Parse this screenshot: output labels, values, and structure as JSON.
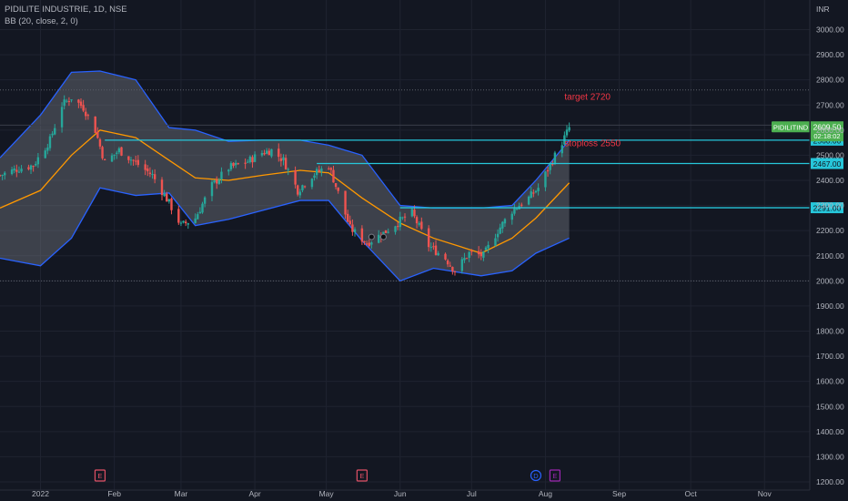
{
  "header": {
    "symbol_line": "PIDILITE INDUSTRIE, 1D, NSE",
    "indicator_line": "BB (20, close, 2, 0)"
  },
  "currency": "INR",
  "annotations": {
    "target": "target 2720",
    "stoploss": "stoploss 2550"
  },
  "badges": {
    "symbol": "PIDILITIND",
    "last_price": "2609.50",
    "countdown": "02:18:02",
    "level_2560": "2560.00",
    "level_2467": "2467.00",
    "level_2291": "2291.00"
  },
  "event_markers": [
    {
      "kind": "earnings",
      "glyph": "E",
      "date": "2022-01-26",
      "color": "#e05065"
    },
    {
      "kind": "earnings",
      "glyph": "E",
      "date": "2022-05-16",
      "color": "#e05065"
    },
    {
      "kind": "dividend",
      "glyph": "D",
      "date": "2022-07-28",
      "color": "#2962ff"
    },
    {
      "kind": "earnings",
      "glyph": "E",
      "date": "2022-08-05",
      "color": "#9c27b0"
    }
  ],
  "colors": {
    "background": "#131722",
    "up_candle": "#26a69a",
    "down_candle": "#ef5350",
    "band": "#2962ff",
    "basis": "#ff9800",
    "band_fill": "#787b86",
    "level_line": "#26c6da",
    "annotation_text": "#f23645",
    "last_price_badge": "#4caf50",
    "axis_text": "#b2b5be"
  },
  "chart_data": {
    "type": "candlestick",
    "title": "PIDILITE INDUSTRIE, 1D, NSE",
    "ylabel": "INR",
    "ylim": [
      1200,
      3100
    ],
    "x_range": [
      "2021-12-15",
      "2022-11-20"
    ],
    "y_ticks": [
      3000,
      2900,
      2800,
      2700,
      2600,
      2500,
      2400,
      2300,
      2200,
      2100,
      2000,
      1900,
      1800,
      1700,
      1600,
      1500,
      1400,
      1300,
      1200
    ],
    "x_ticks": [
      {
        "label": "2022",
        "date": "2022-01-01"
      },
      {
        "label": "Feb",
        "date": "2022-02-01"
      },
      {
        "label": "Mar",
        "date": "2022-03-01"
      },
      {
        "label": "Apr",
        "date": "2022-04-01"
      },
      {
        "label": "May",
        "date": "2022-05-01"
      },
      {
        "label": "Jun",
        "date": "2022-06-01"
      },
      {
        "label": "Jul",
        "date": "2022-07-01"
      },
      {
        "label": "Aug",
        "date": "2022-08-01"
      },
      {
        "label": "Sep",
        "date": "2022-09-01"
      },
      {
        "label": "Oct",
        "date": "2022-10-01"
      },
      {
        "label": "Nov",
        "date": "2022-11-01"
      }
    ],
    "close_path": [
      [
        "2021-12-15",
        2420
      ],
      [
        "2021-12-22",
        2445
      ],
      [
        "2021-12-29",
        2460
      ],
      [
        "2022-01-05",
        2560
      ],
      [
        "2022-01-10",
        2700
      ],
      [
        "2022-01-14",
        2730
      ],
      [
        "2022-01-19",
        2690
      ],
      [
        "2022-01-24",
        2600
      ],
      [
        "2022-01-28",
        2470
      ],
      [
        "2022-02-03",
        2520
      ],
      [
        "2022-02-10",
        2470
      ],
      [
        "2022-02-17",
        2420
      ],
      [
        "2022-02-24",
        2310
      ],
      [
        "2022-03-01",
        2220
      ],
      [
        "2022-03-07",
        2250
      ],
      [
        "2022-03-14",
        2380
      ],
      [
        "2022-03-21",
        2450
      ],
      [
        "2022-03-28",
        2470
      ],
      [
        "2022-04-04",
        2510
      ],
      [
        "2022-04-08",
        2520
      ],
      [
        "2022-04-13",
        2480
      ],
      [
        "2022-04-19",
        2360
      ],
      [
        "2022-04-25",
        2420
      ],
      [
        "2022-05-02",
        2460
      ],
      [
        "2022-05-06",
        2350
      ],
      [
        "2022-05-11",
        2210
      ],
      [
        "2022-05-18",
        2150
      ],
      [
        "2022-05-25",
        2190
      ],
      [
        "2022-06-01",
        2240
      ],
      [
        "2022-06-06",
        2270
      ],
      [
        "2022-06-13",
        2140
      ],
      [
        "2022-06-20",
        2090
      ],
      [
        "2022-06-24",
        2040
      ],
      [
        "2022-06-30",
        2110
      ],
      [
        "2022-07-06",
        2100
      ],
      [
        "2022-07-12",
        2200
      ],
      [
        "2022-07-18",
        2280
      ],
      [
        "2022-07-25",
        2330
      ],
      [
        "2022-07-29",
        2370
      ],
      [
        "2022-08-04",
        2480
      ],
      [
        "2022-08-09",
        2570
      ],
      [
        "2022-08-11",
        2609.5
      ]
    ],
    "bb_upper": [
      [
        "2021-12-15",
        2490
      ],
      [
        "2022-01-01",
        2660
      ],
      [
        "2022-01-14",
        2830
      ],
      [
        "2022-01-26",
        2835
      ],
      [
        "2022-02-10",
        2800
      ],
      [
        "2022-02-24",
        2610
      ],
      [
        "2022-03-07",
        2600
      ],
      [
        "2022-03-21",
        2555
      ],
      [
        "2022-04-04",
        2560
      ],
      [
        "2022-04-20",
        2560
      ],
      [
        "2022-05-02",
        2540
      ],
      [
        "2022-05-16",
        2500
      ],
      [
        "2022-06-01",
        2300
      ],
      [
        "2022-06-15",
        2290
      ],
      [
        "2022-07-05",
        2290
      ],
      [
        "2022-07-18",
        2300
      ],
      [
        "2022-07-28",
        2400
      ],
      [
        "2022-08-11",
        2560
      ]
    ],
    "bb_basis": [
      [
        "2021-12-15",
        2290
      ],
      [
        "2022-01-01",
        2360
      ],
      [
        "2022-01-14",
        2500
      ],
      [
        "2022-01-26",
        2600
      ],
      [
        "2022-02-10",
        2570
      ],
      [
        "2022-02-24",
        2480
      ],
      [
        "2022-03-07",
        2410
      ],
      [
        "2022-03-21",
        2400
      ],
      [
        "2022-04-04",
        2420
      ],
      [
        "2022-04-20",
        2440
      ],
      [
        "2022-05-02",
        2430
      ],
      [
        "2022-05-16",
        2330
      ],
      [
        "2022-06-01",
        2230
      ],
      [
        "2022-06-15",
        2170
      ],
      [
        "2022-07-05",
        2110
      ],
      [
        "2022-07-18",
        2170
      ],
      [
        "2022-07-28",
        2250
      ],
      [
        "2022-08-11",
        2390
      ]
    ],
    "bb_lower": [
      [
        "2021-12-15",
        2090
      ],
      [
        "2022-01-01",
        2060
      ],
      [
        "2022-01-14",
        2170
      ],
      [
        "2022-01-26",
        2370
      ],
      [
        "2022-02-10",
        2340
      ],
      [
        "2022-02-24",
        2350
      ],
      [
        "2022-03-07",
        2220
      ],
      [
        "2022-03-21",
        2245
      ],
      [
        "2022-04-04",
        2280
      ],
      [
        "2022-04-20",
        2320
      ],
      [
        "2022-05-02",
        2320
      ],
      [
        "2022-05-16",
        2160
      ],
      [
        "2022-06-01",
        2000
      ],
      [
        "2022-06-15",
        2050
      ],
      [
        "2022-07-05",
        2020
      ],
      [
        "2022-07-18",
        2040
      ],
      [
        "2022-07-28",
        2110
      ],
      [
        "2022-08-11",
        2170
      ]
    ],
    "levels": [
      {
        "price": 2560,
        "start": "2022-01-28",
        "label": "2560.00"
      },
      {
        "price": 2467,
        "start": "2022-04-27",
        "label": "2467.00"
      },
      {
        "price": 2291,
        "start": "2022-06-01",
        "label": "2291.00"
      }
    ],
    "dotted_levels": [
      2760,
      2000
    ],
    "horizontal_lines": [
      2620
    ]
  }
}
